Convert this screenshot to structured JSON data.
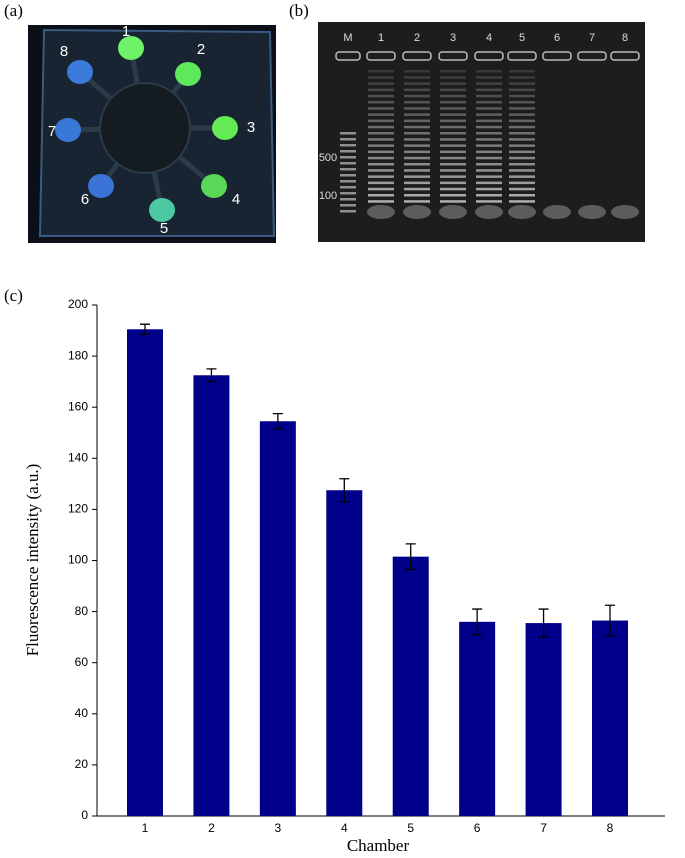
{
  "figure": {
    "panel_labels": [
      "(a)",
      "(b)",
      "(c)"
    ],
    "chip_labels": [
      "1",
      "2",
      "3",
      "4",
      "5",
      "6",
      "7",
      "8"
    ],
    "gel_lane_labels": [
      "M",
      "1",
      "2",
      "3",
      "4",
      "5",
      "6",
      "7",
      "8"
    ],
    "gel_ladder_labels": [
      "500",
      "100"
    ]
  },
  "chart_data": {
    "type": "bar",
    "xlabel": "Chamber",
    "ylabel": "Fluorescence intensity (a.u.)",
    "categories": [
      "1",
      "2",
      "3",
      "4",
      "5",
      "6",
      "7",
      "8"
    ],
    "values": [
      190.5,
      172.5,
      154.5,
      127.5,
      101.5,
      76,
      75.5,
      76.5
    ],
    "errors": [
      2,
      2.5,
      3,
      4.5,
      5,
      5,
      5.5,
      6
    ],
    "color": "#00008b",
    "ylim": [
      0,
      200
    ],
    "yticks": [
      0,
      20,
      40,
      60,
      80,
      100,
      120,
      140,
      160,
      180,
      200
    ]
  }
}
